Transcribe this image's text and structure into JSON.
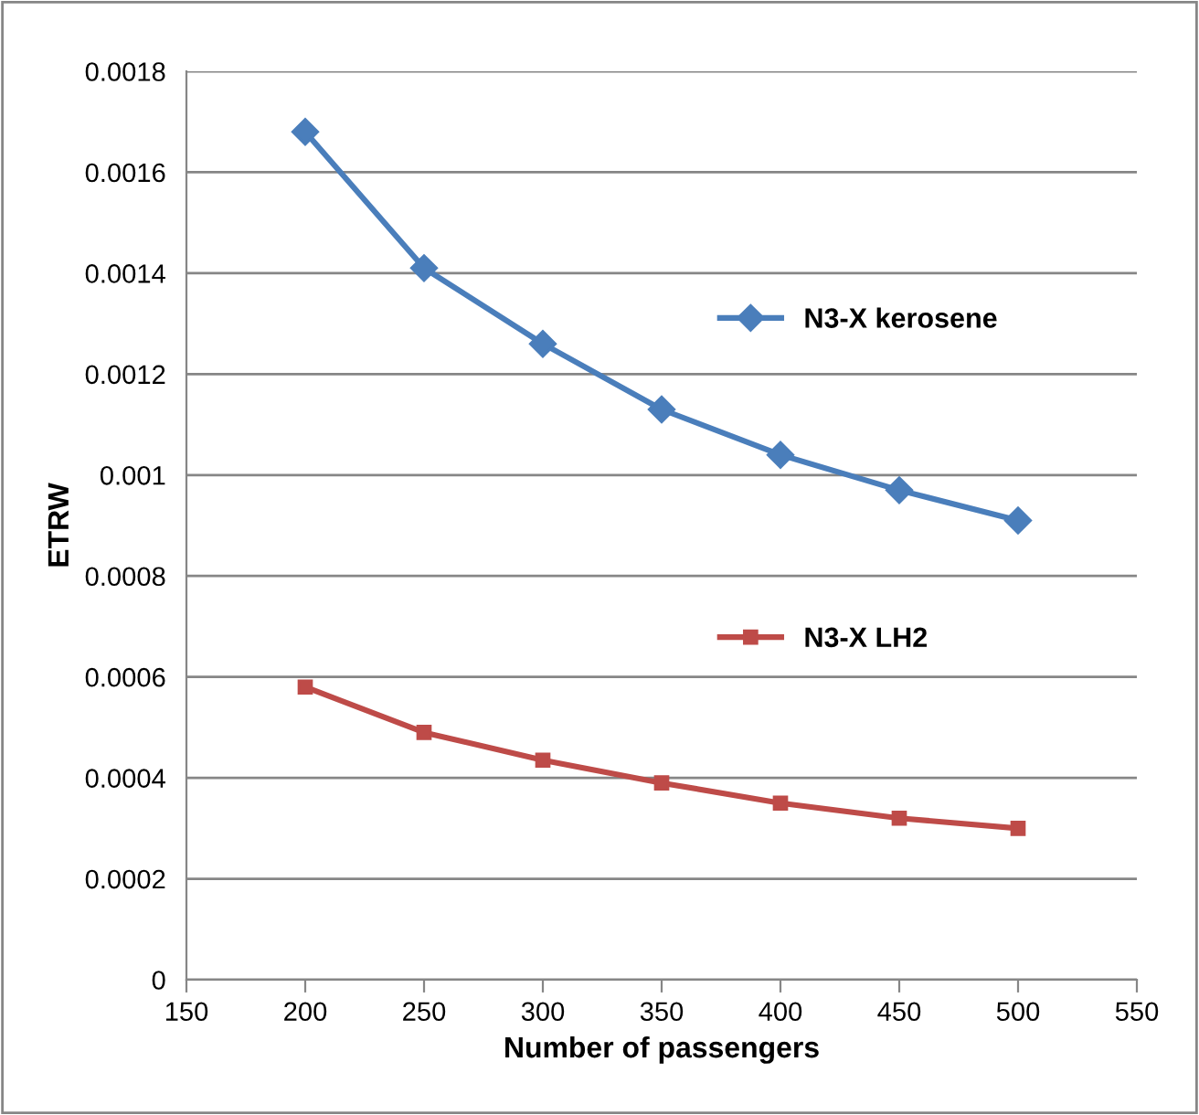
{
  "chart_data": {
    "type": "line",
    "xlabel": "Number of passengers",
    "ylabel": "ETRW",
    "x": [
      200,
      250,
      300,
      350,
      400,
      450,
      500
    ],
    "series": [
      {
        "name": "N3-X kerosene",
        "color": "#4a7ebb",
        "marker": "diamond",
        "values": [
          0.00168,
          0.00141,
          0.00126,
          0.00113,
          0.00104,
          0.00097,
          0.00091
        ]
      },
      {
        "name": "N3-X LH2",
        "color": "#be4b48",
        "marker": "square",
        "values": [
          0.00058,
          0.00049,
          0.000435,
          0.00039,
          0.00035,
          0.00032,
          0.0003
        ]
      }
    ],
    "xlim": [
      150,
      550
    ],
    "xticks": [
      150,
      200,
      250,
      300,
      350,
      400,
      450,
      500,
      550
    ],
    "ylim": [
      0,
      0.0018
    ],
    "yticks": [
      0,
      0.0002,
      0.0004,
      0.0006,
      0.0008,
      0.001,
      0.0012,
      0.0014,
      0.0016,
      0.0018
    ],
    "grid": "y",
    "legend": "right",
    "line_style": "solid"
  }
}
